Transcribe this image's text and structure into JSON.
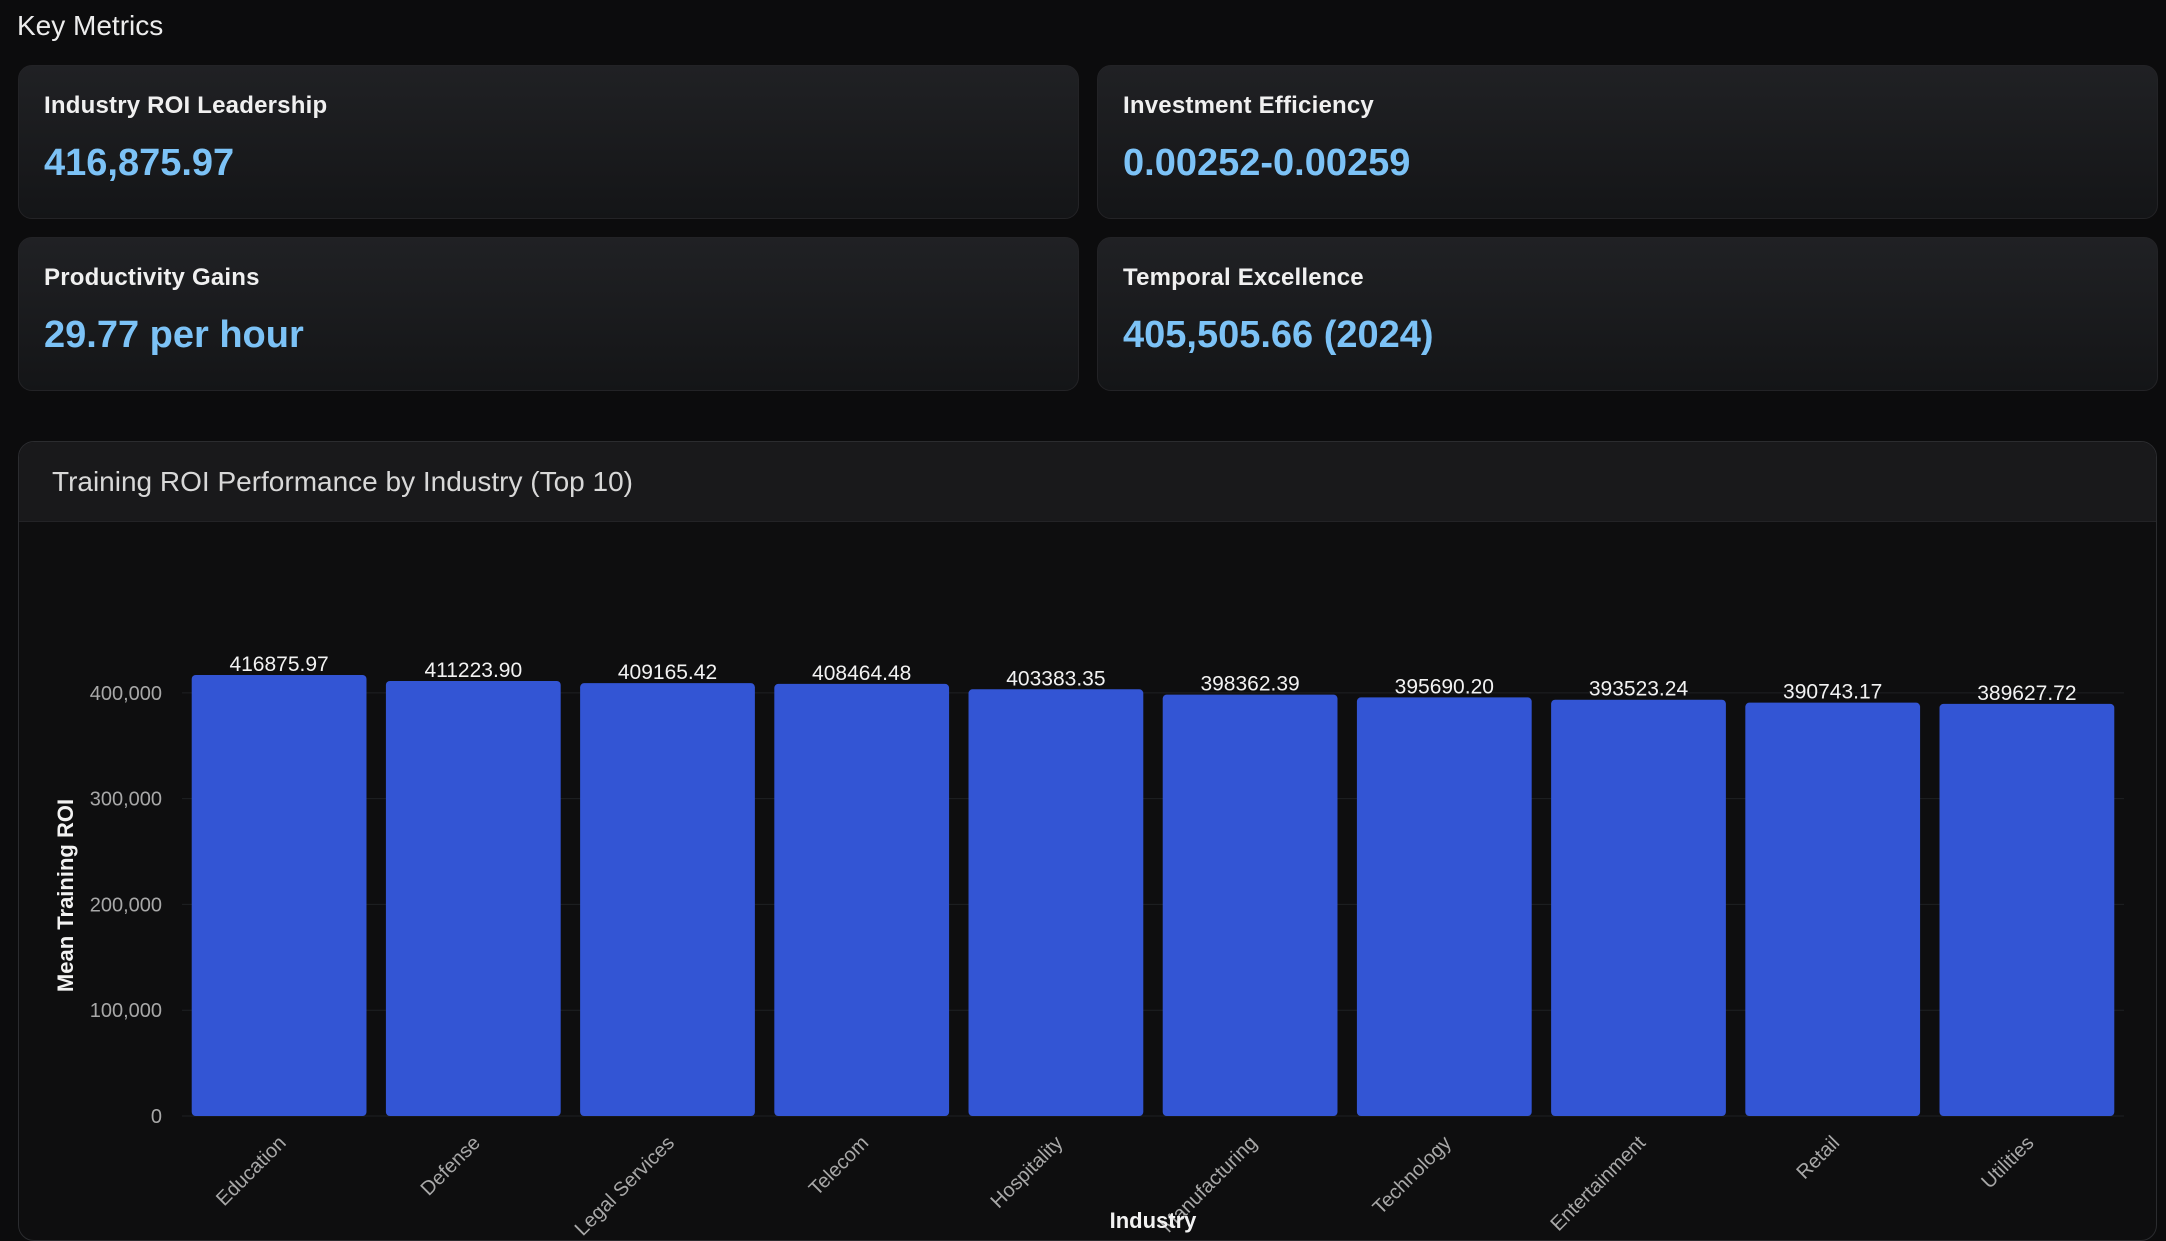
{
  "section": {
    "title": "Key Metrics"
  },
  "metrics": [
    {
      "label": "Industry ROI Leadership",
      "value": "416,875.97"
    },
    {
      "label": "Investment Efficiency",
      "value": "0.00252-0.00259"
    },
    {
      "label": "Productivity Gains",
      "value": "29.77 per hour"
    },
    {
      "label": "Temporal Excellence",
      "value": "405,505.66 (2024)"
    }
  ],
  "colors": {
    "accent_value": "#7cc2f6",
    "bar": "#3355d4",
    "background": "#0c0c0d"
  },
  "chart_data": {
    "type": "bar",
    "title": "Training ROI Performance by Industry (Top 10)",
    "xlabel": "Industry",
    "ylabel": "Mean Training ROI",
    "categories": [
      "Education",
      "Defense",
      "Legal Services",
      "Telecom",
      "Hospitality",
      "Manufacturing",
      "Technology",
      "Entertainment",
      "Retail",
      "Utilities"
    ],
    "values": [
      416875.97,
      411223.9,
      409165.42,
      408464.48,
      403383.35,
      398362.39,
      395690.2,
      393523.24,
      390743.17,
      389627.72
    ],
    "value_labels": [
      "416875.97",
      "411223.90",
      "409165.42",
      "408464.48",
      "403383.35",
      "398362.39",
      "395690.20",
      "393523.24",
      "390743.17",
      "389627.72"
    ],
    "yticks": [
      0,
      100000,
      200000,
      300000,
      400000
    ],
    "ytick_labels": [
      "0",
      "100,000",
      "200,000",
      "300,000",
      "400,000"
    ],
    "ylim": [
      0,
      416875.97
    ],
    "grid": true,
    "legend": false
  }
}
